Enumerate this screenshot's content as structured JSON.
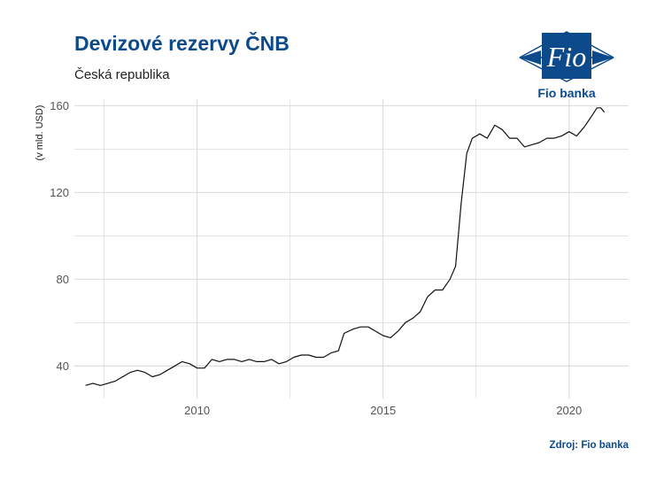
{
  "header": {
    "title": "Devizové rezervy ČNB",
    "subtitle": "Česká republika"
  },
  "logo": {
    "mark": "Fio",
    "name": "Fio banka"
  },
  "footer": {
    "source": "Zdroj: Fio banka"
  },
  "colors": {
    "brand": "#0d4a8c",
    "line": "#111111",
    "grid": "#d4d4d4"
  },
  "chart_data": {
    "type": "line",
    "title": "Devizové rezervy ČNB",
    "subtitle": "Česká republika",
    "xlabel": "",
    "ylabel": "(v mld. USD)",
    "xlim": [
      2006.7,
      2021.6
    ],
    "ylim": [
      25,
      163
    ],
    "x_ticks": [
      2010,
      2015,
      2020
    ],
    "y_ticks": [
      40,
      80,
      120,
      160
    ],
    "grid": true,
    "legend": "none",
    "series": [
      {
        "x": [
          2007.0,
          2007.2,
          2007.4,
          2007.6,
          2007.8,
          2008.0,
          2008.2,
          2008.4,
          2008.6,
          2008.8,
          2009.0,
          2009.2,
          2009.4,
          2009.6,
          2009.8,
          2010.0,
          2010.2,
          2010.4,
          2010.6,
          2010.8,
          2011.0,
          2011.2,
          2011.4,
          2011.6,
          2011.8,
          2012.0,
          2012.2,
          2012.4,
          2012.6,
          2012.8,
          2013.0,
          2013.2,
          2013.4,
          2013.6,
          2013.8,
          2013.95,
          2014.2,
          2014.4,
          2014.6,
          2014.8,
          2015.0,
          2015.2,
          2015.4,
          2015.6,
          2015.8,
          2016.0,
          2016.2,
          2016.4,
          2016.6,
          2016.8,
          2016.95,
          2017.1,
          2017.25,
          2017.4,
          2017.6,
          2017.8,
          2018.0,
          2018.2,
          2018.4,
          2018.6,
          2018.8,
          2019.0,
          2019.2,
          2019.4,
          2019.6,
          2019.8,
          2020.0,
          2020.2,
          2020.4,
          2020.6,
          2020.75,
          2020.85,
          2020.95
        ],
        "y": [
          31,
          32,
          31,
          32,
          33,
          35,
          37,
          38,
          37,
          35,
          36,
          38,
          40,
          42,
          41,
          39,
          39,
          43,
          42,
          43,
          43,
          42,
          43,
          42,
          42,
          43,
          41,
          42,
          44,
          45,
          45,
          44,
          44,
          46,
          47,
          55,
          57,
          58,
          58,
          56,
          54,
          53,
          56,
          60,
          62,
          65,
          72,
          75,
          75,
          80,
          86,
          115,
          138,
          145,
          147,
          145,
          151,
          149,
          145,
          145,
          141,
          142,
          143,
          145,
          145,
          146,
          148,
          146,
          150,
          155,
          159,
          159,
          157
        ],
        "values": [
          31,
          32,
          31,
          32,
          33,
          35,
          37,
          38,
          37,
          35,
          36,
          38,
          40,
          42,
          41,
          39,
          39,
          43,
          42,
          43,
          43,
          42,
          43,
          42,
          42,
          43,
          41,
          42,
          44,
          45,
          45,
          44,
          44,
          46,
          47,
          55,
          57,
          58,
          58,
          56,
          54,
          53,
          56,
          60,
          62,
          65,
          72,
          75,
          75,
          80,
          86,
          115,
          138,
          145,
          147,
          145,
          151,
          149,
          145,
          145,
          141,
          142,
          143,
          145,
          145,
          146,
          148,
          146,
          150,
          155,
          159,
          159,
          157
        ]
      }
    ]
  }
}
